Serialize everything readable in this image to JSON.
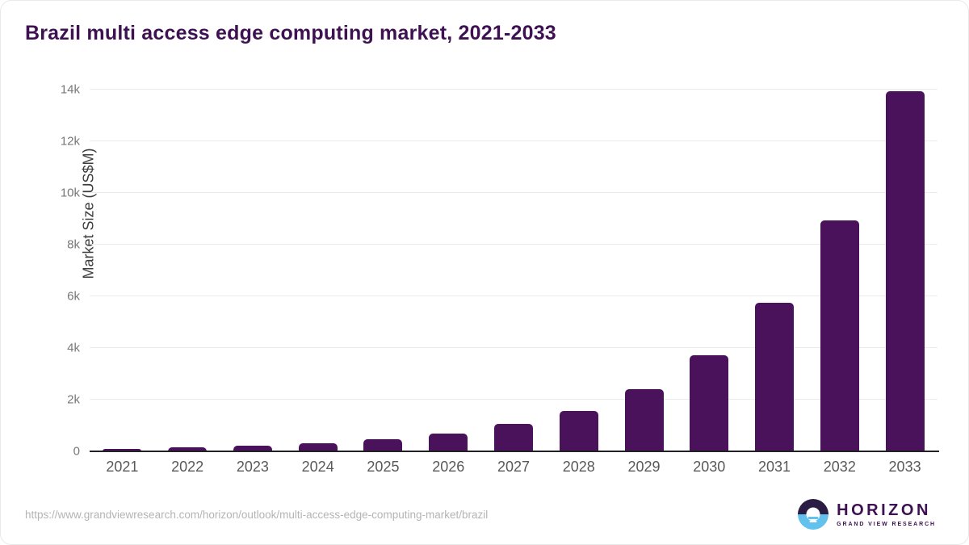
{
  "page": {
    "title": "Brazil multi access edge computing market, 2021-2033",
    "source_url": "https://www.grandviewresearch.com/horizon/outlook/multi-access-edge-computing-market/brazil"
  },
  "logo": {
    "name": "HORIZON",
    "subtitle": "GRAND VIEW RESEARCH",
    "circle_top_color": "#2A1C43",
    "circle_bottom_color": "#63C1EE",
    "text_color": "#3D1152"
  },
  "colors": {
    "bar": "#4A125A",
    "title": "#3D1152",
    "gridline": "#ececec",
    "baseline": "#222226",
    "tick_label": "#77777b",
    "x_label": "#59595b",
    "url_text": "#b4b4b4"
  },
  "chart_data": {
    "type": "bar",
    "title": "Brazil multi access edge computing market, 2021-2033",
    "xlabel": "",
    "ylabel": "Market Size (US$M)",
    "categories": [
      "2021",
      "2022",
      "2023",
      "2024",
      "2025",
      "2026",
      "2027",
      "2028",
      "2029",
      "2030",
      "2031",
      "2032",
      "2033"
    ],
    "values": [
      85,
      150,
      225,
      305,
      460,
      690,
      1060,
      1570,
      2420,
      3710,
      5750,
      8940,
      13930
    ],
    "ylim": [
      0,
      14000
    ],
    "yticks": [
      {
        "value": 0,
        "label": "0"
      },
      {
        "value": 2000,
        "label": "2k"
      },
      {
        "value": 4000,
        "label": "4k"
      },
      {
        "value": 6000,
        "label": "6k"
      },
      {
        "value": 8000,
        "label": "8k"
      },
      {
        "value": 10000,
        "label": "10k"
      },
      {
        "value": 12000,
        "label": "12k"
      },
      {
        "value": 14000,
        "label": "14k"
      }
    ],
    "grid": "horizontal",
    "legend": "none",
    "bar_color": "#4A125A"
  }
}
